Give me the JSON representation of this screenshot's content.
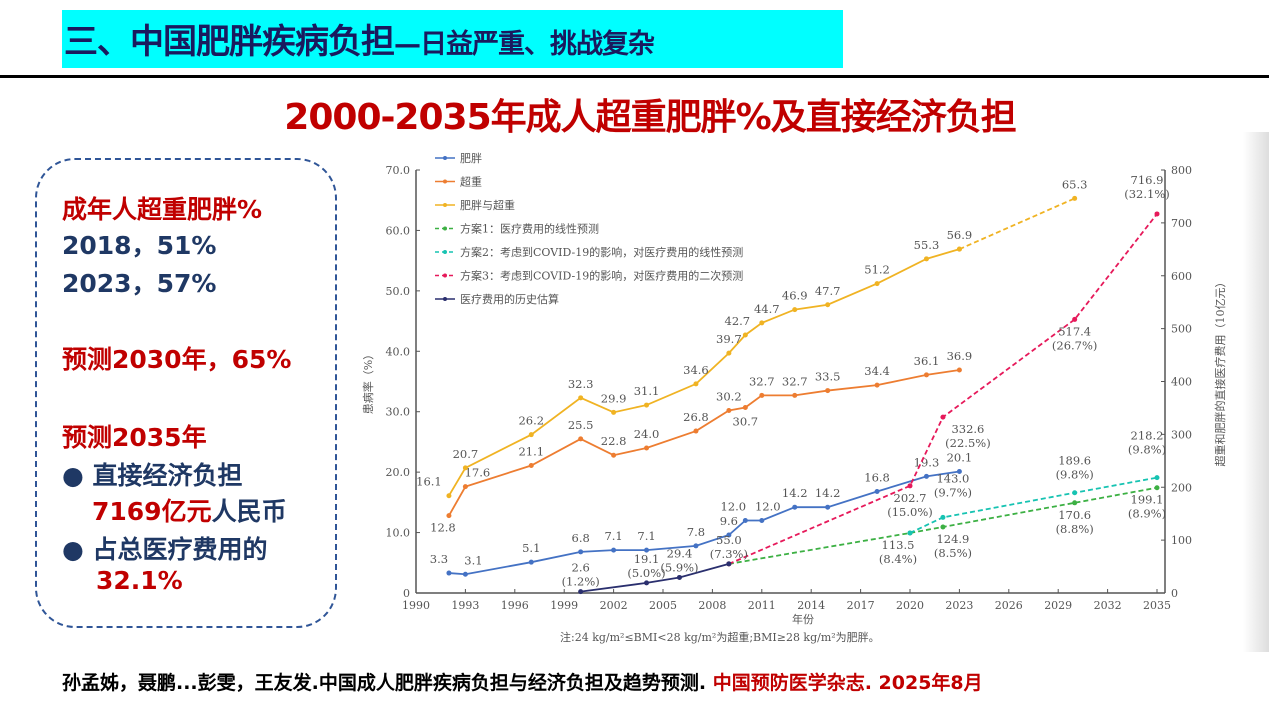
{
  "header": {
    "title_main": "三、中国肥胖疾病负担",
    "title_sub": "—日益严重、挑战复杂"
  },
  "slide_title": "2000-2035年成人超重肥胖%及直接经济负担",
  "summary": {
    "heading": "成年人超重肥胖%",
    "line1": "2018，51%",
    "line2": "2023，57%",
    "forecast2030": "预测2030年，65%",
    "forecast2035": "预测2035年",
    "bullet1": "直接经济负担",
    "bullet1_value": "7169亿元",
    "bullet1_unit": "人民币",
    "bullet2": "占总医疗费用的",
    "bullet2_value": "32.1%",
    "bullet_symbol": "●"
  },
  "citation": {
    "authors": "孙孟姊，聂鹏...彭雯，王友发.中国成人肥胖疾病负担与经济负担及趋势预测.",
    "journal": "中国预防医学杂志. 2025年8月"
  },
  "chart_data": {
    "type": "line",
    "xlabel": "年份",
    "ylabel": "患病率（%）",
    "y2label": "超重和肥胖的直接医疗费用（10亿元）",
    "note": "注:24 kg/m²≤BMI<28 kg/m²为超重;BMI≥28 kg/m²为肥胖。",
    "xlim": [
      1990,
      2035
    ],
    "xticks": [
      "1990",
      "1993",
      "1996",
      "1999",
      "2002",
      "2005",
      "2008",
      "2011",
      "2014",
      "2017",
      "2020",
      "2023",
      "2026",
      "2029",
      "2032",
      "2035"
    ],
    "ylim": [
      0,
      70
    ],
    "yticks": [
      "0",
      "10.0",
      "20.0",
      "30.0",
      "40.0",
      "50.0",
      "60.0",
      "70.0"
    ],
    "y2lim": [
      0,
      800
    ],
    "y2ticks": [
      "0",
      "100",
      "200",
      "300",
      "400",
      "500",
      "600",
      "700",
      "800"
    ],
    "legend_position": "top-left",
    "series": [
      {
        "name": "肥胖",
        "axis": "left",
        "color": "#4472c4",
        "dashed": false,
        "x": [
          1992,
          1993,
          1997,
          2000,
          2002,
          2004,
          2007,
          2009,
          2010,
          2011,
          2013,
          2015,
          2018,
          2021,
          2023
        ],
        "y": [
          3.3,
          3.1,
          5.1,
          6.8,
          7.1,
          7.1,
          7.8,
          9.6,
          12.0,
          12.0,
          14.2,
          14.2,
          16.8,
          19.3,
          20.1
        ],
        "labels": [
          "3.3",
          "3.1",
          "5.1",
          "6.8",
          "7.1",
          "7.1",
          "7.8",
          "9.6",
          "12.0",
          "12.0",
          "14.2",
          "14.2",
          "16.8",
          "19.3",
          "20.1"
        ]
      },
      {
        "name": "超重",
        "axis": "left",
        "color": "#ed7d31",
        "dashed": false,
        "x": [
          1992,
          1993,
          1997,
          2000,
          2002,
          2004,
          2007,
          2009,
          2010,
          2011,
          2013,
          2015,
          2018,
          2021,
          2023
        ],
        "y": [
          12.8,
          17.6,
          21.1,
          25.5,
          22.8,
          24.0,
          26.8,
          30.2,
          30.7,
          32.7,
          32.7,
          33.5,
          34.4,
          36.1,
          36.9
        ],
        "labels": [
          "12.8",
          "17.6",
          "21.1",
          "25.5",
          "22.8",
          "24.0",
          "26.8",
          "30.2",
          "30.7",
          "32.7",
          "32.7",
          "33.5",
          "34.4",
          "36.1",
          "36.9"
        ]
      },
      {
        "name": "肥胖与超重",
        "axis": "left",
        "color": "#f0b323",
        "dashed": false,
        "x": [
          1992,
          1993,
          1997,
          2000,
          2002,
          2004,
          2007,
          2009,
          2010,
          2011,
          2013,
          2015,
          2018,
          2021,
          2023
        ],
        "y": [
          16.1,
          20.7,
          26.2,
          32.3,
          29.9,
          31.1,
          34.6,
          39.7,
          42.7,
          44.7,
          46.9,
          47.7,
          51.2,
          55.3,
          56.9
        ],
        "labels": [
          "16.1",
          "20.7",
          "26.2",
          "32.3",
          "29.9",
          "31.1",
          "34.6",
          "39.7",
          "42.7",
          "44.7",
          "46.9",
          "47.7",
          "51.2",
          "55.3",
          "56.9"
        ]
      },
      {
        "name": "",
        "axis": "left",
        "color": "#f0b323",
        "dashed": true,
        "x": [
          2023,
          2030
        ],
        "y": [
          56.9,
          65.3
        ],
        "labels": [
          "",
          "65.3"
        ]
      },
      {
        "name": "方案1：医疗费用的线性预测",
        "axis": "right",
        "color": "#3cb043",
        "dashed": true,
        "x": [
          2009,
          2020,
          2022,
          2030,
          2035
        ],
        "y": [
          55.0,
          113.5,
          124.9,
          170.6,
          199.1
        ],
        "labels": [
          "",
          "113.5\n(8.4%)",
          "124.9\n(8.5%)",
          "170.6\n(8.8%)",
          "199.1\n(8.9%)"
        ]
      },
      {
        "name": "方案2：考虑到COVID-19的影响，对医疗费用的线性预测",
        "axis": "right",
        "color": "#17c3b2",
        "dashed": true,
        "x": [
          2020,
          2022,
          2030,
          2035
        ],
        "y": [
          113.5,
          143.0,
          189.6,
          218.2
        ],
        "labels": [
          "",
          "143.0\n(9.7%)",
          "189.6\n(9.8%)",
          "218.2\n(9.8%)"
        ]
      },
      {
        "name": "方案3：考虑到COVID-19的影响，对医疗费用的二次预测",
        "axis": "right",
        "color": "#e6195a",
        "dashed": true,
        "x": [
          2009,
          2020,
          2022,
          2030,
          2035
        ],
        "y": [
          55.0,
          202.7,
          332.6,
          517.4,
          716.9
        ],
        "labels": [
          "",
          "202.7\n(15.0%)",
          "332.6\n(22.5%)",
          "517.4\n(26.7%)",
          "716.9\n(32.1%)"
        ]
      },
      {
        "name": "医疗费用的历史估算",
        "axis": "right",
        "color": "#2a2f6e",
        "dashed": false,
        "x": [
          2000,
          2004,
          2006,
          2009
        ],
        "y": [
          2.6,
          19.1,
          29.4,
          55.0
        ],
        "labels": [
          "2.6\n(1.2%)",
          "19.1\n(5.0%)",
          "29.4\n(5.9%)",
          "55.0\n(7.3%)"
        ]
      }
    ]
  }
}
